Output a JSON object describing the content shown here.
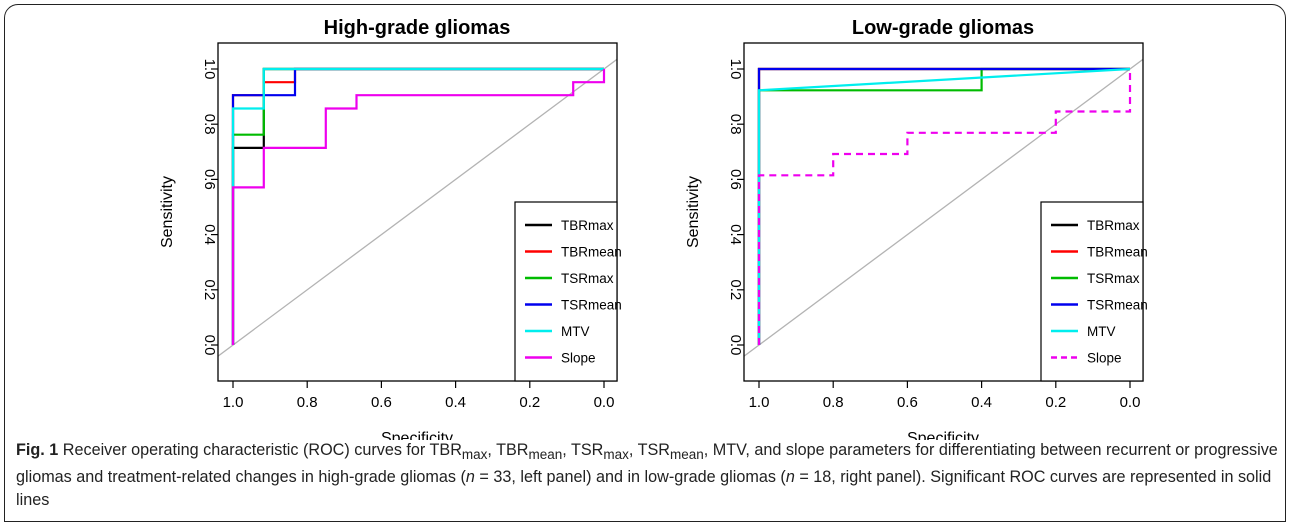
{
  "chart_data": [
    {
      "type": "line",
      "title": "High-grade gliomas",
      "xlabel": "Specificity",
      "ylabel": "Sensitivity",
      "xlim": [
        1.0,
        0.0
      ],
      "ylim": [
        0.0,
        1.0
      ],
      "x_reversed": true,
      "xticks": [
        "1.0",
        "0.8",
        "0.6",
        "0.4",
        "0.2",
        "0.0"
      ],
      "yticks": [
        "0.0",
        "0.2",
        "0.4",
        "0.6",
        "0.8",
        "1.0"
      ],
      "legend_position": "bottom-right",
      "grid": false,
      "reference_diagonal": true,
      "series": [
        {
          "name": "TBRmax",
          "color": "#000000",
          "dashed": false,
          "points": [
            [
              1.0,
              0.0
            ],
            [
              1.0,
              0.714
            ],
            [
              0.917,
              0.714
            ],
            [
              0.917,
              1.0
            ],
            [
              0.0,
              1.0
            ]
          ]
        },
        {
          "name": "TBRmean",
          "color": "#ff0000",
          "dashed": false,
          "points": [
            [
              1.0,
              0.0
            ],
            [
              1.0,
              0.905
            ],
            [
              0.917,
              0.905
            ],
            [
              0.917,
              0.952
            ],
            [
              0.833,
              0.952
            ],
            [
              0.833,
              1.0
            ],
            [
              0.0,
              1.0
            ]
          ]
        },
        {
          "name": "TSRmax",
          "color": "#00bb00",
          "dashed": false,
          "points": [
            [
              1.0,
              0.0
            ],
            [
              1.0,
              0.762
            ],
            [
              0.917,
              0.762
            ],
            [
              0.917,
              1.0
            ],
            [
              0.0,
              1.0
            ]
          ]
        },
        {
          "name": "TSRmean",
          "color": "#0000ee",
          "dashed": false,
          "points": [
            [
              1.0,
              0.0
            ],
            [
              1.0,
              0.905
            ],
            [
              0.833,
              0.905
            ],
            [
              0.833,
              1.0
            ],
            [
              0.0,
              1.0
            ]
          ]
        },
        {
          "name": "MTV",
          "color": "#00eeee",
          "dashed": false,
          "points": [
            [
              1.0,
              0.0
            ],
            [
              1.0,
              0.857
            ],
            [
              0.917,
              0.857
            ],
            [
              0.917,
              1.0
            ],
            [
              0.0,
              1.0
            ]
          ]
        },
        {
          "name": "Slope",
          "color": "#ee00ee",
          "dashed": false,
          "points": [
            [
              1.0,
              0.0
            ],
            [
              1.0,
              0.571
            ],
            [
              0.917,
              0.571
            ],
            [
              0.917,
              0.714
            ],
            [
              0.75,
              0.714
            ],
            [
              0.75,
              0.857
            ],
            [
              0.667,
              0.857
            ],
            [
              0.667,
              0.905
            ],
            [
              0.083,
              0.905
            ],
            [
              0.083,
              0.952
            ],
            [
              0.0,
              0.952
            ],
            [
              0.0,
              1.0
            ]
          ]
        }
      ]
    },
    {
      "type": "line",
      "title": "Low-grade gliomas",
      "xlabel": "Specificity",
      "ylabel": "Sensitivity",
      "xlim": [
        1.0,
        0.0
      ],
      "ylim": [
        0.0,
        1.0
      ],
      "x_reversed": true,
      "xticks": [
        "1.0",
        "0.8",
        "0.6",
        "0.4",
        "0.2",
        "0.0"
      ],
      "yticks": [
        "0.0",
        "0.2",
        "0.4",
        "0.6",
        "0.8",
        "1.0"
      ],
      "legend_position": "bottom-right",
      "grid": false,
      "reference_diagonal": true,
      "series": [
        {
          "name": "TBRmax",
          "color": "#000000",
          "dashed": false,
          "points": [
            [
              1.0,
              0.0
            ],
            [
              1.0,
              1.0
            ],
            [
              0.0,
              1.0
            ]
          ]
        },
        {
          "name": "TBRmean",
          "color": "#ff0000",
          "dashed": false,
          "points": [
            [
              1.0,
              0.0
            ],
            [
              1.0,
              1.0
            ],
            [
              0.0,
              1.0
            ]
          ]
        },
        {
          "name": "TSRmax",
          "color": "#00bb00",
          "dashed": false,
          "points": [
            [
              1.0,
              0.0
            ],
            [
              1.0,
              0.923
            ],
            [
              0.4,
              0.923
            ],
            [
              0.4,
              1.0
            ],
            [
              0.0,
              1.0
            ]
          ]
        },
        {
          "name": "TSRmean",
          "color": "#0000ee",
          "dashed": false,
          "points": [
            [
              1.0,
              0.0
            ],
            [
              1.0,
              1.0
            ],
            [
              0.0,
              1.0
            ]
          ]
        },
        {
          "name": "MTV",
          "color": "#00eeee",
          "dashed": false,
          "points": [
            [
              1.0,
              0.0
            ],
            [
              1.0,
              0.923
            ],
            [
              0.0,
              1.0
            ]
          ]
        },
        {
          "name": "Slope",
          "color": "#ee00ee",
          "dashed": true,
          "points": [
            [
              1.0,
              0.0
            ],
            [
              1.0,
              0.615
            ],
            [
              0.8,
              0.615
            ],
            [
              0.8,
              0.692
            ],
            [
              0.6,
              0.692
            ],
            [
              0.6,
              0.769
            ],
            [
              0.2,
              0.769
            ],
            [
              0.2,
              0.846
            ],
            [
              0.0,
              0.846
            ],
            [
              0.0,
              1.0
            ]
          ]
        }
      ]
    }
  ],
  "caption": {
    "fig_label": "Fig. 1",
    "text_html": " Receiver operating characteristic (ROC) curves for TBR<sub>max</sub>, TBR<sub>mean</sub>, TSR<sub>max</sub>, TSR<sub>mean</sub>, MTV, and slope parameters for differentiating between recurrent or progressive gliomas and treatment-related changes in high-grade gliomas (<i>n</i> = 33, left panel) and in low-grade gliomas (<i>n</i> = 18, right panel). Significant ROC curves are represented in solid lines"
  }
}
